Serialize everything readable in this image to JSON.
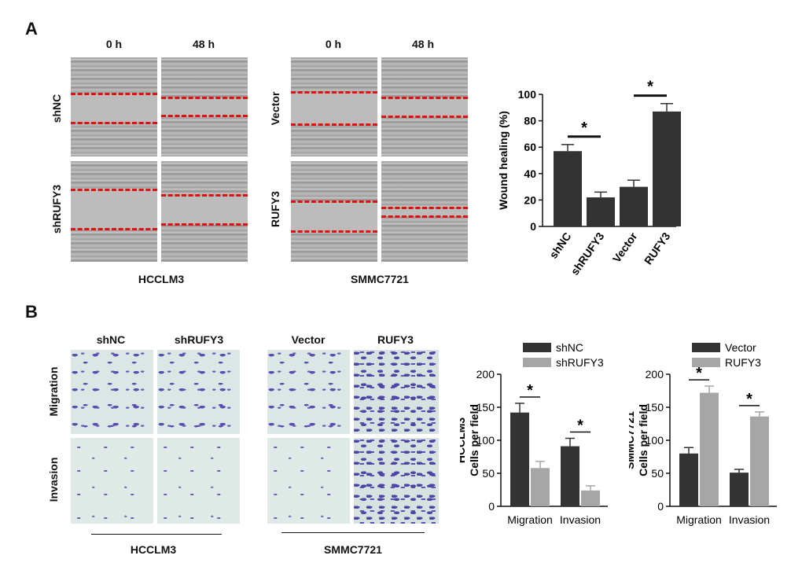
{
  "panels": {
    "A": "A",
    "B": "B"
  },
  "panelA": {
    "time_labels": [
      "0 h",
      "48 h"
    ],
    "left_rows": [
      "shNC",
      "shRUFY3"
    ],
    "right_rows": [
      "Vector",
      "RUFY3"
    ],
    "left_caption": "HCCLM3",
    "right_caption": "SMMC7721",
    "red_line_color": "#e01010"
  },
  "panelB": {
    "left_cols": [
      "shNC",
      "shRUFY3"
    ],
    "right_cols": [
      "Vector",
      "RUFY3"
    ],
    "rows": [
      "Migration",
      "Invasion"
    ],
    "left_caption": "HCCLM3",
    "right_caption": "SMMC7721"
  },
  "chart_data": [
    {
      "type": "bar",
      "categories": [
        "shNC",
        "shRUFY3",
        "Vector",
        "RUFY3"
      ],
      "values": [
        57,
        22,
        30,
        87
      ],
      "errors": [
        5,
        4,
        5,
        6
      ],
      "ylabel": "Wound healing (%)",
      "ylim": [
        0,
        100
      ],
      "yticks": [
        "0",
        "20",
        "40",
        "60",
        "80",
        "100"
      ],
      "significance": [
        {
          "pair": [
            0,
            1
          ],
          "label": "*"
        },
        {
          "pair": [
            2,
            3
          ],
          "label": "*"
        }
      ],
      "colors": [
        "#333333"
      ]
    },
    {
      "type": "bar",
      "categories": [
        "Migration",
        "Invasion"
      ],
      "series": [
        {
          "name": "shNC",
          "values": [
            142,
            91
          ],
          "errors": [
            14,
            12
          ],
          "color": "#333333"
        },
        {
          "name": "shRUFY3",
          "values": [
            58,
            24
          ],
          "errors": [
            10,
            7
          ],
          "color": "#a6a6a6"
        }
      ],
      "ylabel": "HCCLM3\nCells per field",
      "ylabel_lines": [
        "HCCLM3",
        "Cells per field"
      ],
      "ylim": [
        0,
        200
      ],
      "yticks": [
        "0",
        "50",
        "100",
        "150",
        "200"
      ],
      "legend": "top-left",
      "significance_label": "*"
    },
    {
      "type": "bar",
      "categories": [
        "Migration",
        "Invasion"
      ],
      "series": [
        {
          "name": "Vector",
          "values": [
            80,
            51
          ],
          "errors": [
            9,
            5
          ],
          "color": "#333333"
        },
        {
          "name": "RUFY3",
          "values": [
            172,
            136
          ],
          "errors": [
            10,
            7
          ],
          "color": "#a6a6a6"
        }
      ],
      "ylabel_lines": [
        "SMMC7721",
        "Cells per field"
      ],
      "ylim": [
        0,
        200
      ],
      "yticks": [
        "0",
        "50",
        "100",
        "150",
        "200"
      ],
      "legend": "top-left",
      "significance_label": "*"
    }
  ]
}
